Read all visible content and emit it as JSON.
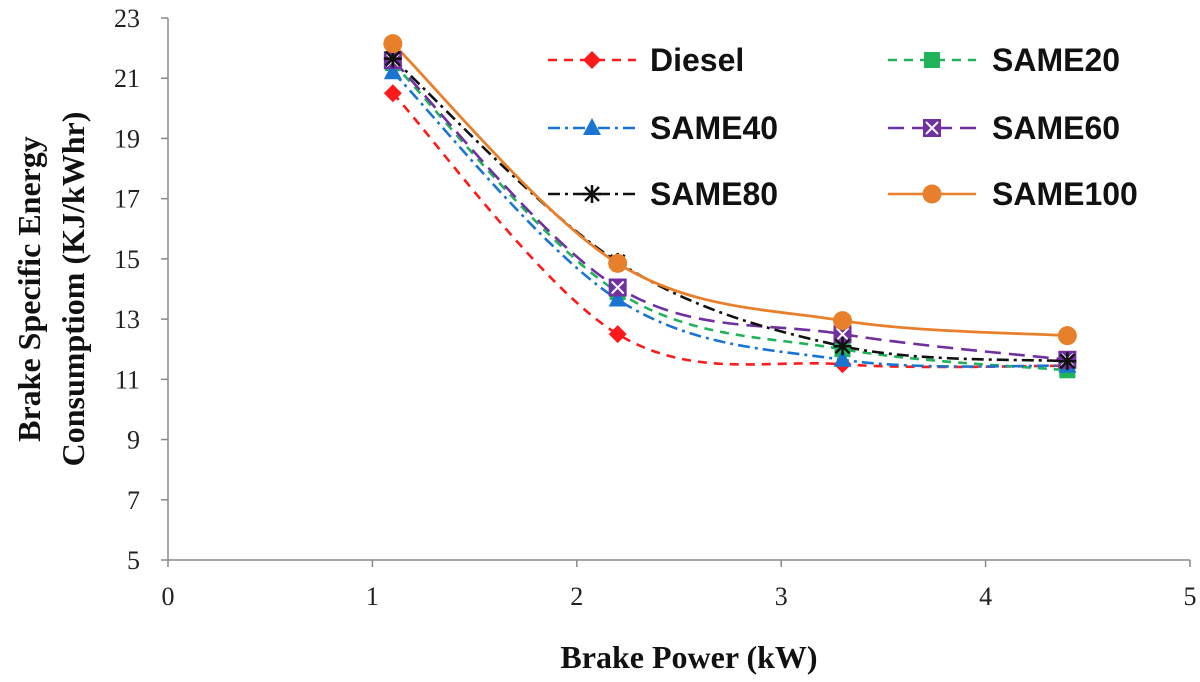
{
  "chart_data": {
    "type": "line",
    "xlabel": "Brake Power (kW)",
    "ylabel_lines": [
      "Brake  Specific Energy",
      "Consumptiom (KJ/kWhr)"
    ],
    "xlim": [
      0,
      5
    ],
    "ylim": [
      5,
      23
    ],
    "x_ticks": [
      "0",
      "1",
      "2",
      "3",
      "4",
      "5"
    ],
    "y_ticks": [
      "5",
      "7",
      "9",
      "11",
      "13",
      "15",
      "17",
      "19",
      "21",
      "23"
    ],
    "x": [
      1.1,
      2.2,
      3.3,
      4.4
    ],
    "legend_position": "top-right",
    "grid": false,
    "series": [
      {
        "name": "Diesel",
        "values": [
          20.5,
          12.5,
          11.5,
          11.45
        ],
        "color": "#ff1a1a",
        "marker": "diamond",
        "dash": "dash"
      },
      {
        "name": "SAME20",
        "values": [
          21.5,
          13.9,
          12.0,
          11.3
        ],
        "color": "#22b35a",
        "marker": "square",
        "dash": "dash"
      },
      {
        "name": "SAME40",
        "values": [
          21.2,
          13.65,
          11.65,
          11.45
        ],
        "color": "#1a75d1",
        "marker": "triangle",
        "dash": "dashdot"
      },
      {
        "name": "SAME60",
        "values": [
          21.6,
          14.05,
          12.5,
          11.65
        ],
        "color": "#7030a0",
        "marker": "boxx",
        "dash": "longdash"
      },
      {
        "name": "SAME80",
        "values": [
          21.65,
          14.9,
          12.1,
          11.6
        ],
        "color": "#111111",
        "marker": "star",
        "dash": "dashdot"
      },
      {
        "name": "SAME100",
        "values": [
          22.15,
          14.85,
          12.95,
          12.45
        ],
        "color": "#e8802b",
        "marker": "circle",
        "dash": "solid"
      }
    ]
  }
}
